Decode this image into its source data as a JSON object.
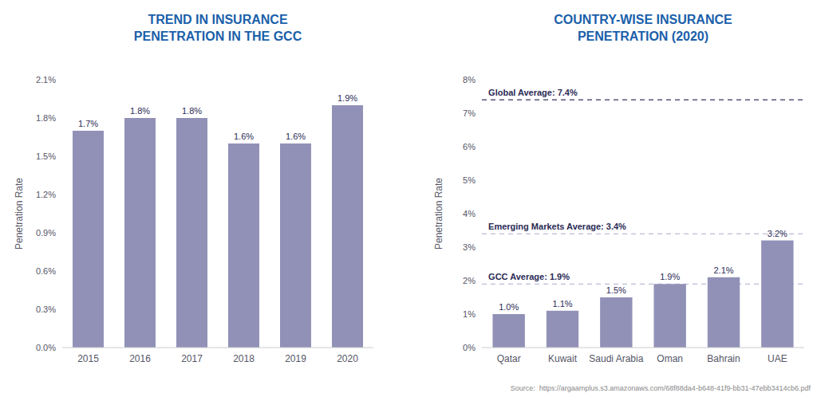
{
  "chart_data": [
    {
      "type": "bar",
      "title": "TREND IN INSURANCE\nPENETRATION IN THE GCC",
      "ylabel": "Penetration Rate",
      "categories": [
        "2015",
        "2016",
        "2017",
        "2018",
        "2019",
        "2020"
      ],
      "values": [
        1.7,
        1.8,
        1.8,
        1.6,
        1.6,
        1.9
      ],
      "value_labels": [
        "1.7%",
        "1.8%",
        "1.8%",
        "1.6%",
        "1.6%",
        "1.9%"
      ],
      "data_labels": true,
      "color": "#9191b8",
      "ylim": [
        0,
        2.1
      ],
      "yticks": [
        {
          "value": 0.0,
          "label": "0.0%"
        },
        {
          "value": 0.3,
          "label": "0.3%"
        },
        {
          "value": 0.6,
          "label": "0.6%"
        },
        {
          "value": 0.9,
          "label": "0.9%"
        },
        {
          "value": 1.2,
          "label": "1.2%"
        },
        {
          "value": 1.5,
          "label": "1.5%"
        },
        {
          "value": 1.8,
          "label": "1.8%"
        },
        {
          "value": 2.1,
          "label": "2.1%"
        }
      ],
      "grid": false
    },
    {
      "type": "bar",
      "title": "COUNTRY-WISE INSURANCE\nPENETRATION (2020)",
      "ylabel": "Penetration Rate",
      "categories": [
        "Qatar",
        "Kuwait",
        "Saudi Arabia",
        "Oman",
        "Bahrain",
        "UAE"
      ],
      "values": [
        1.0,
        1.1,
        1.5,
        1.9,
        2.1,
        3.2
      ],
      "value_labels": [
        "1.0%",
        "1.1%",
        "1.5%",
        "1.9%",
        "2.1%",
        "3.2%"
      ],
      "data_labels": true,
      "color": "#9191b8",
      "ylim": [
        0,
        8
      ],
      "yticks": [
        {
          "value": 0,
          "label": "0%"
        },
        {
          "value": 1,
          "label": "1%"
        },
        {
          "value": 2,
          "label": "2%"
        },
        {
          "value": 3,
          "label": "3%"
        },
        {
          "value": 4,
          "label": "4%"
        },
        {
          "value": 5,
          "label": "5%"
        },
        {
          "value": 6,
          "label": "6%"
        },
        {
          "value": 7,
          "label": "7%"
        },
        {
          "value": 8,
          "label": "8%"
        }
      ],
      "grid": false,
      "reference_lines": [
        {
          "value": 7.4,
          "label": "Global Average: 7.4%",
          "color": "#555577"
        },
        {
          "value": 3.4,
          "label": "Emerging Markets Average: 3.4%",
          "color": "#aaaacc"
        },
        {
          "value": 1.9,
          "label": "GCC Average: 1.9%",
          "color": "#aaaacc"
        }
      ],
      "source": "Source:  https://argaamplus.s3.amazonaws.com/68f88da4-b648-41f9-bb31-47ebb3414cb6.pdf"
    }
  ]
}
